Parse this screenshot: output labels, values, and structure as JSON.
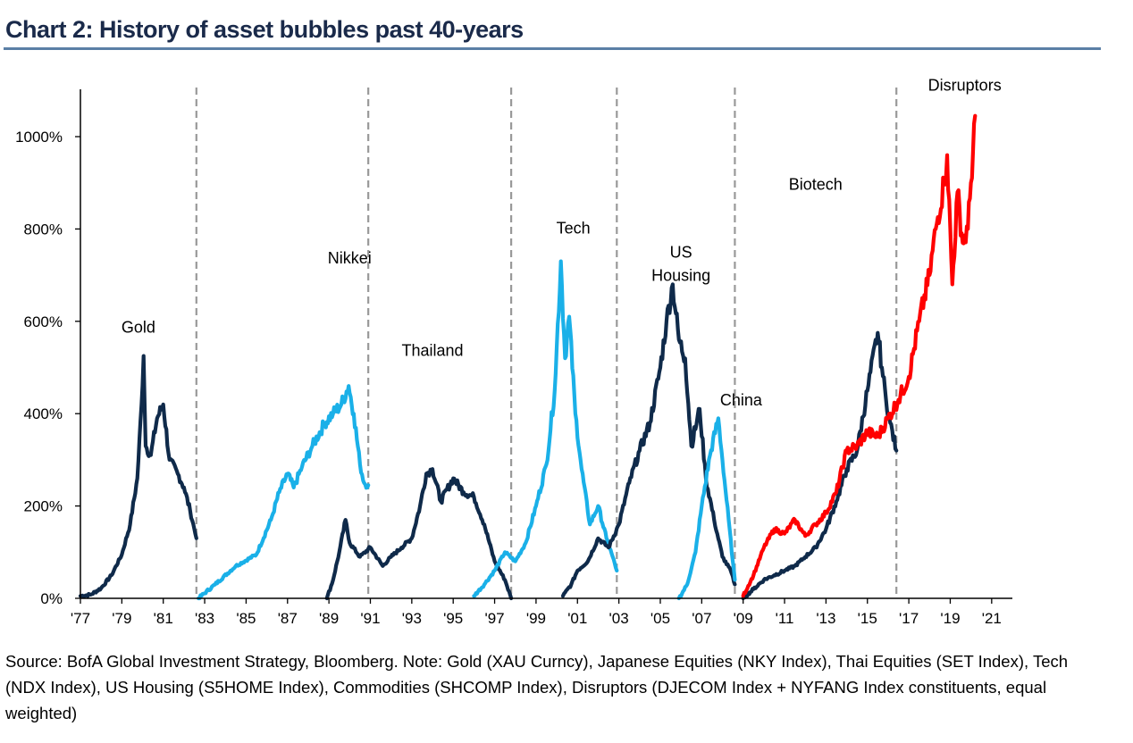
{
  "title": "Chart 2: History of asset bubbles past 40-years",
  "source": "Source:  BofA Global Investment Strategy, Bloomberg. Note: Gold (XAU Curncy), Japanese Equities (NKY Index), Thai Equities (SET Index), Tech (NDX Index), US Housing (S5HOME Index), Commodities (SHCOMP Index), Disruptors (DJECOM Index + NYFANG Index constituents, equal weighted)",
  "colors": {
    "navy": "#0f2a4a",
    "light_blue": "#1ab0e8",
    "red": "#ff0000",
    "divider": "#999999"
  },
  "chart_data": {
    "type": "line",
    "title": "Chart 2: History of asset bubbles past 40-years",
    "xlabel": "",
    "ylabel": "",
    "xlim": [
      1977,
      2022
    ],
    "ylim": [
      0,
      1000
    ],
    "x_ticks": [
      1977,
      1979,
      1981,
      1983,
      1985,
      1987,
      1989,
      1991,
      1993,
      1995,
      1997,
      1999,
      2001,
      2003,
      2005,
      2007,
      2009,
      2011,
      2013,
      2015,
      2017,
      2019,
      2021
    ],
    "x_tick_labels": [
      "'77",
      "'79",
      "'81",
      "'83",
      "'85",
      "'87",
      "'89",
      "'91",
      "'93",
      "'95",
      "'97",
      "'99",
      "'01",
      "'03",
      "'05",
      "'07",
      "'09",
      "'11",
      "'13",
      "'15",
      "'17",
      "'19",
      "'21"
    ],
    "y_ticks": [
      0,
      200,
      400,
      600,
      800,
      1000
    ],
    "y_tick_labels": [
      "0%",
      "200%",
      "400%",
      "600%",
      "800%",
      "1000%"
    ],
    "grid": false,
    "legend": "none",
    "dividers": [
      1982.6,
      1990.9,
      1997.8,
      2002.9,
      2008.6,
      2016.4
    ],
    "series": [
      {
        "name": "Gold",
        "color": "navy",
        "label_x": 1979.8,
        "label_y": 575,
        "points": [
          [
            1977.0,
            5
          ],
          [
            1977.5,
            8
          ],
          [
            1978.0,
            22
          ],
          [
            1978.5,
            50
          ],
          [
            1979.0,
            95
          ],
          [
            1979.4,
            160
          ],
          [
            1979.75,
            260
          ],
          [
            1979.95,
            420
          ],
          [
            1980.05,
            525
          ],
          [
            1980.15,
            330
          ],
          [
            1980.4,
            310
          ],
          [
            1980.7,
            390
          ],
          [
            1981.0,
            420
          ],
          [
            1981.3,
            300
          ],
          [
            1981.7,
            270
          ],
          [
            1982.0,
            240
          ],
          [
            1982.3,
            190
          ],
          [
            1982.5,
            150
          ],
          [
            1982.6,
            130
          ]
        ]
      },
      {
        "name": "Nikkei",
        "color": "light_blue",
        "label_x": 1990.0,
        "label_y": 725,
        "points": [
          [
            1982.7,
            0
          ],
          [
            1983.5,
            30
          ],
          [
            1984.5,
            70
          ],
          [
            1985.5,
            95
          ],
          [
            1986.2,
            170
          ],
          [
            1986.6,
            230
          ],
          [
            1987.0,
            270
          ],
          [
            1987.3,
            240
          ],
          [
            1987.7,
            285
          ],
          [
            1988.2,
            330
          ],
          [
            1988.8,
            380
          ],
          [
            1989.2,
            400
          ],
          [
            1989.6,
            420
          ],
          [
            1989.95,
            460
          ],
          [
            1990.2,
            400
          ],
          [
            1990.5,
            290
          ],
          [
            1990.7,
            250
          ],
          [
            1990.9,
            245
          ]
        ]
      },
      {
        "name": "Thailand",
        "color": "navy",
        "label_x": 1994.0,
        "label_y": 525,
        "points": [
          [
            1988.9,
            0
          ],
          [
            1989.2,
            40
          ],
          [
            1989.5,
            100
          ],
          [
            1989.8,
            170
          ],
          [
            1990.0,
            120
          ],
          [
            1990.5,
            90
          ],
          [
            1991.0,
            110
          ],
          [
            1991.6,
            70
          ],
          [
            1992.0,
            90
          ],
          [
            1992.5,
            110
          ],
          [
            1993.0,
            130
          ],
          [
            1993.4,
            200
          ],
          [
            1993.7,
            270
          ],
          [
            1994.0,
            280
          ],
          [
            1994.4,
            210
          ],
          [
            1995.0,
            260
          ],
          [
            1995.5,
            230
          ],
          [
            1996.0,
            220
          ],
          [
            1996.5,
            160
          ],
          [
            1997.0,
            80
          ],
          [
            1997.5,
            40
          ],
          [
            1997.8,
            0
          ]
        ]
      },
      {
        "name": "Tech",
        "color": "light_blue",
        "label_x": 2000.8,
        "label_y": 790,
        "points": [
          [
            1996.0,
            5
          ],
          [
            1996.5,
            30
          ],
          [
            1997.0,
            60
          ],
          [
            1997.5,
            100
          ],
          [
            1998.0,
            80
          ],
          [
            1998.5,
            120
          ],
          [
            1999.0,
            200
          ],
          [
            1999.5,
            290
          ],
          [
            1999.9,
            450
          ],
          [
            2000.2,
            730
          ],
          [
            2000.4,
            520
          ],
          [
            2000.6,
            610
          ],
          [
            2000.9,
            400
          ],
          [
            2001.2,
            280
          ],
          [
            2001.6,
            160
          ],
          [
            2002.0,
            200
          ],
          [
            2002.4,
            130
          ],
          [
            2002.7,
            90
          ],
          [
            2002.9,
            60
          ]
        ]
      },
      {
        "name": "US Housing",
        "color": "navy",
        "label_x": 2006.0,
        "label_y": 738,
        "points": [
          [
            2000.3,
            5
          ],
          [
            2000.7,
            30
          ],
          [
            2001.0,
            60
          ],
          [
            2001.5,
            80
          ],
          [
            2002.0,
            130
          ],
          [
            2002.5,
            110
          ],
          [
            2003.0,
            160
          ],
          [
            2003.5,
            250
          ],
          [
            2004.0,
            320
          ],
          [
            2004.5,
            380
          ],
          [
            2005.0,
            500
          ],
          [
            2005.3,
            600
          ],
          [
            2005.6,
            680
          ],
          [
            2005.9,
            560
          ],
          [
            2006.2,
            520
          ],
          [
            2006.5,
            330
          ],
          [
            2006.9,
            410
          ],
          [
            2007.2,
            260
          ],
          [
            2007.6,
            170
          ],
          [
            2008.0,
            90
          ],
          [
            2008.4,
            60
          ],
          [
            2008.6,
            30
          ]
        ]
      },
      {
        "name": "China",
        "color": "light_blue",
        "label_x": 2008.9,
        "label_y": 418,
        "points": [
          [
            2005.9,
            0
          ],
          [
            2006.3,
            30
          ],
          [
            2006.7,
            100
          ],
          [
            2007.0,
            200
          ],
          [
            2007.4,
            310
          ],
          [
            2007.8,
            390
          ],
          [
            2008.0,
            300
          ],
          [
            2008.3,
            170
          ],
          [
            2008.5,
            80
          ],
          [
            2008.6,
            40
          ]
        ]
      },
      {
        "name": "Biotech",
        "color": "navy",
        "label_x": 2012.5,
        "label_y": 885,
        "points": [
          [
            2009.0,
            0
          ],
          [
            2009.5,
            20
          ],
          [
            2010.0,
            40
          ],
          [
            2010.5,
            50
          ],
          [
            2011.0,
            60
          ],
          [
            2011.5,
            70
          ],
          [
            2012.0,
            90
          ],
          [
            2012.5,
            110
          ],
          [
            2013.0,
            150
          ],
          [
            2013.5,
            210
          ],
          [
            2014.0,
            280
          ],
          [
            2014.5,
            320
          ],
          [
            2015.0,
            450
          ],
          [
            2015.5,
            575
          ],
          [
            2015.7,
            500
          ],
          [
            2015.9,
            430
          ],
          [
            2016.1,
            380
          ],
          [
            2016.4,
            320
          ]
        ]
      },
      {
        "name": "Disruptors",
        "color": "red",
        "label_x": 2019.7,
        "label_y": 1100,
        "points": [
          [
            2009.0,
            5
          ],
          [
            2009.5,
            50
          ],
          [
            2010.0,
            110
          ],
          [
            2010.5,
            150
          ],
          [
            2011.0,
            140
          ],
          [
            2011.5,
            170
          ],
          [
            2012.0,
            135
          ],
          [
            2012.5,
            160
          ],
          [
            2013.0,
            185
          ],
          [
            2013.5,
            230
          ],
          [
            2014.0,
            320
          ],
          [
            2014.5,
            330
          ],
          [
            2015.0,
            360
          ],
          [
            2015.5,
            350
          ],
          [
            2016.0,
            390
          ],
          [
            2016.5,
            430
          ],
          [
            2017.0,
            480
          ],
          [
            2017.5,
            600
          ],
          [
            2018.0,
            700
          ],
          [
            2018.3,
            800
          ],
          [
            2018.7,
            900
          ],
          [
            2018.85,
            960
          ],
          [
            2019.1,
            680
          ],
          [
            2019.35,
            880
          ],
          [
            2019.6,
            770
          ],
          [
            2019.85,
            800
          ],
          [
            2020.0,
            900
          ],
          [
            2020.2,
            1045
          ]
        ]
      }
    ]
  }
}
